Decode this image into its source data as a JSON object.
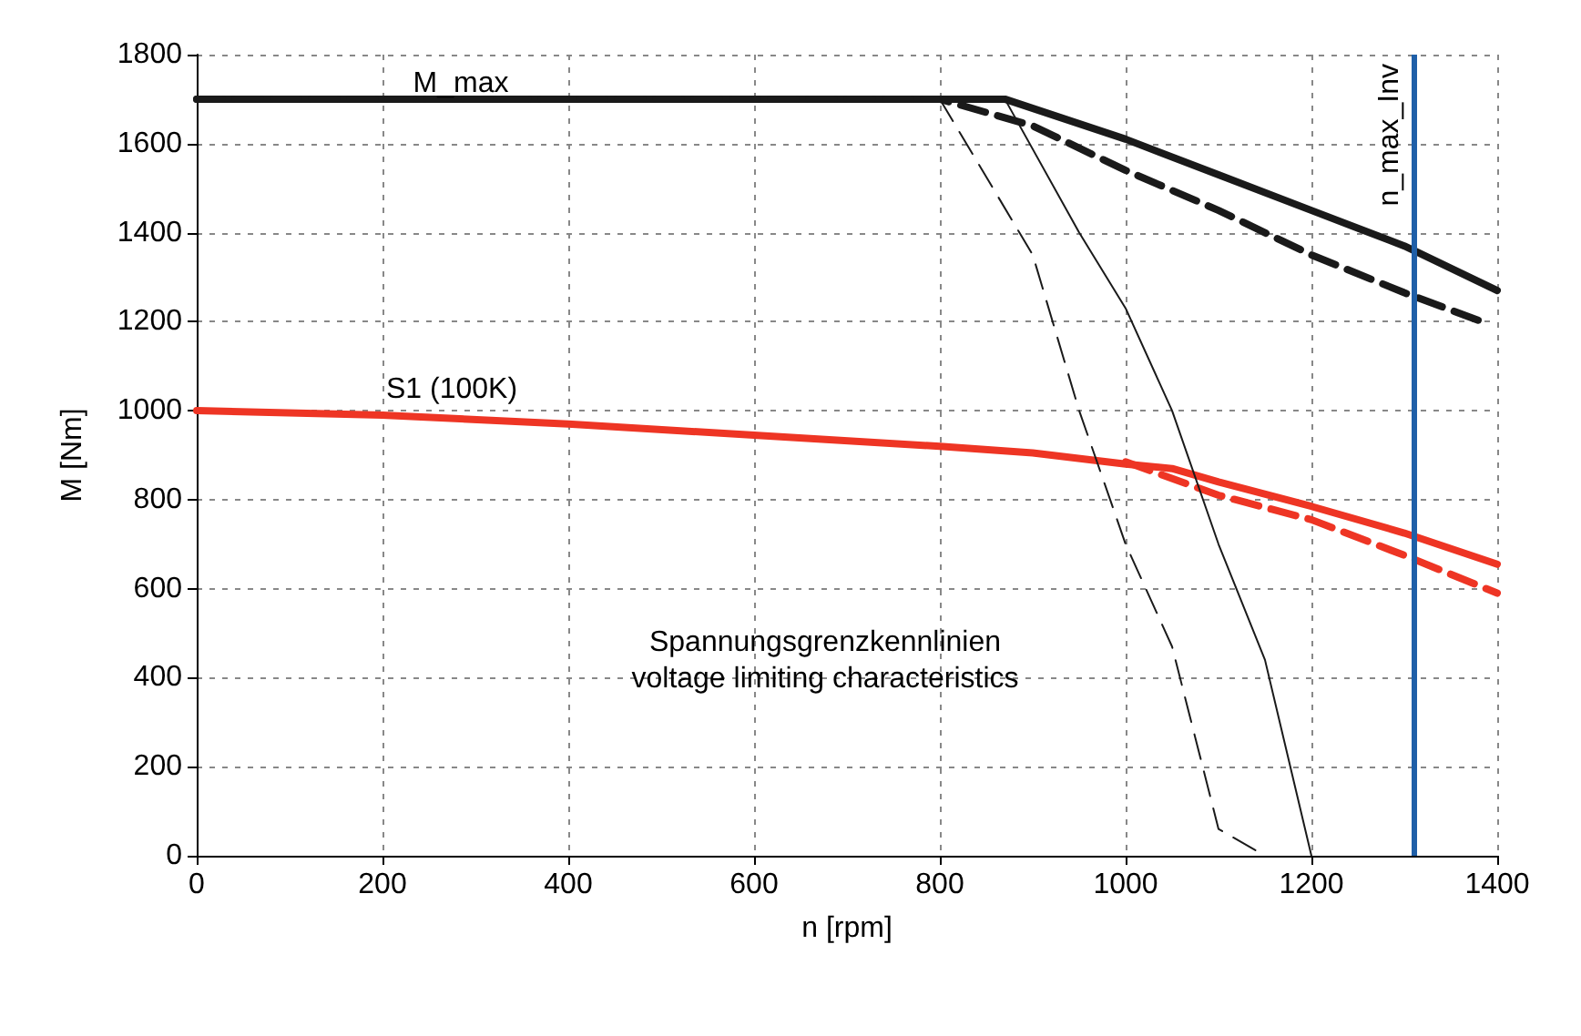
{
  "chart_data": {
    "type": "line",
    "xlabel": "n [rpm]",
    "ylabel": "M [Nm]",
    "xlim": [
      0,
      1400
    ],
    "xticks": [
      0,
      200,
      400,
      600,
      800,
      1000,
      1200,
      1400
    ],
    "ylim": [
      0,
      1800
    ],
    "yticks": [
      0,
      200,
      400,
      600,
      800,
      1000,
      1200,
      1400,
      1600,
      1800
    ],
    "grid": true,
    "marker": "none",
    "series": [
      {
        "color": "#1a1a1a",
        "line_style": "solid",
        "x": [
          0,
          870,
          1000,
          1100,
          1200,
          1300,
          1400
        ],
        "values": [
          1700,
          1700,
          1610,
          1530,
          1450,
          1370,
          1270
        ]
      },
      {
        "color": "#1a1a1a",
        "line_style": "dashed",
        "x": [
          0,
          800,
          900,
          1000,
          1100,
          1200,
          1300,
          1390
        ],
        "values": [
          1700,
          1700,
          1640,
          1540,
          1450,
          1350,
          1265,
          1195
        ]
      },
      {
        "color": "#ee3524",
        "line_style": "solid",
        "x": [
          0,
          200,
          400,
          600,
          800,
          900,
          1000,
          1050,
          1100,
          1200,
          1300,
          1400
        ],
        "values": [
          1000,
          990,
          970,
          945,
          920,
          905,
          880,
          870,
          840,
          785,
          725,
          655
        ]
      },
      {
        "color": "#ee3524",
        "line_style": "dashed",
        "x": [
          1000,
          1100,
          1200,
          1300,
          1400
        ],
        "values": [
          885,
          810,
          755,
          675,
          590
        ]
      },
      {
        "color": "#1a1a1a",
        "line_style": "solid",
        "x": [
          870,
          950,
          1000,
          1050,
          1100,
          1150,
          1200
        ],
        "values": [
          1700,
          1400,
          1230,
          1000,
          700,
          440,
          0
        ]
      },
      {
        "color": "#1a1a1a",
        "line_style": "dashed",
        "x": [
          800,
          900,
          950,
          1000,
          1050,
          1100,
          1150
        ],
        "values": [
          1700,
          1350,
          1000,
          700,
          470,
          60,
          0
        ]
      }
    ],
    "ref_lines": [
      {
        "axis": "x",
        "value": 1310,
        "label": "n_max_Inv",
        "color": "#1f5fa8"
      }
    ],
    "annotations": [
      "M_max",
      "S1 (100K)",
      "Spannungsgrenzkennlinien\nvoltage limiting characteristics"
    ]
  }
}
